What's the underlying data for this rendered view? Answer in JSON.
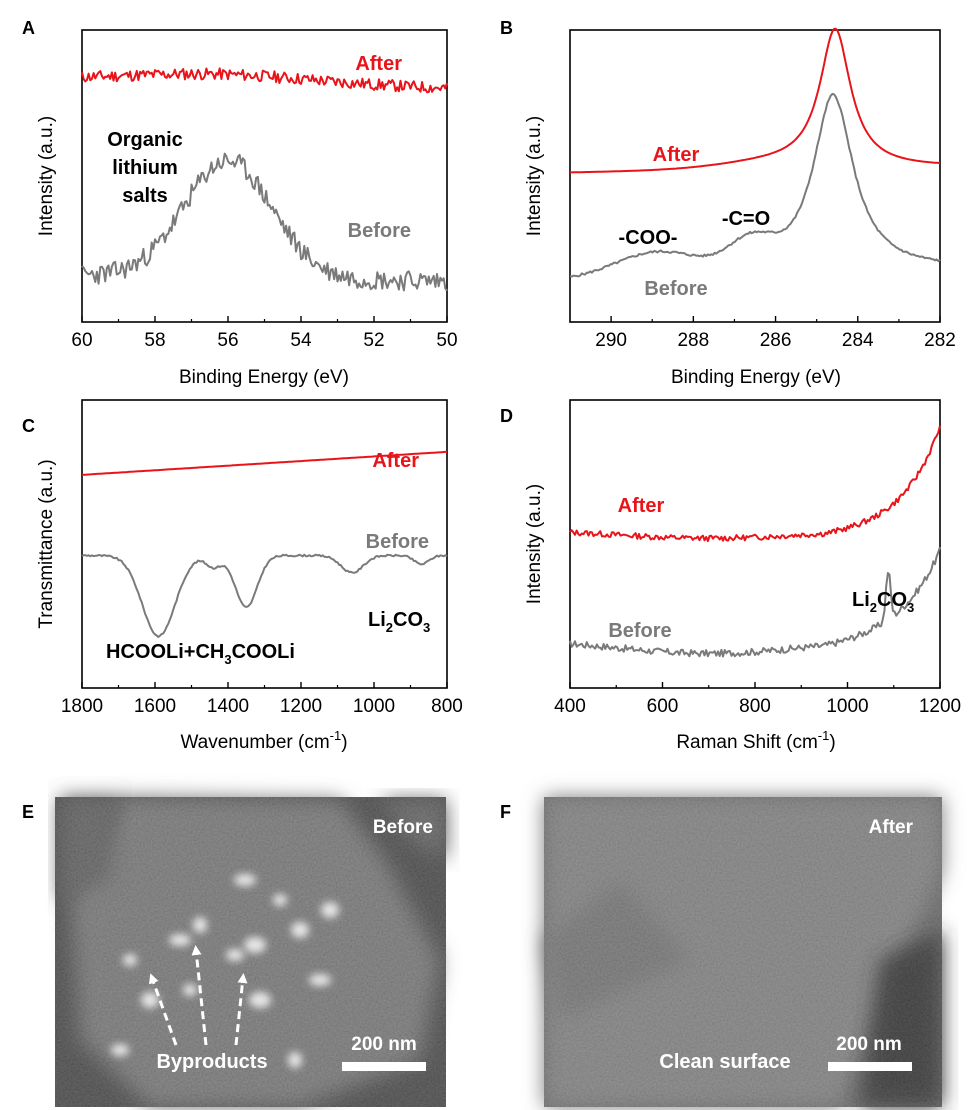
{
  "figure": {
    "panels": [
      {
        "letter": "A"
      },
      {
        "letter": "B"
      },
      {
        "letter": "C"
      },
      {
        "letter": "D"
      },
      {
        "letter": "E"
      },
      {
        "letter": "F"
      }
    ]
  },
  "colors": {
    "after": "#e8141a",
    "before": "#7a7a7a",
    "axis": "#000000"
  },
  "chart_data": [
    {
      "panel": "A",
      "type": "line",
      "xlabel": "Binding Energy (eV)",
      "ylabel": "Intensity (a.u.)",
      "xlim": [
        60,
        50
      ],
      "ylim": [
        0,
        100
      ],
      "xticks": [
        60,
        58,
        56,
        54,
        52,
        50
      ],
      "series": [
        {
          "name": "After",
          "label": "After",
          "color": "#e8141a",
          "base": 83,
          "noise": 2.0,
          "seed": 11,
          "peaks": [
            {
              "center": 56.2,
              "height": 3,
              "width": 2.5
            }
          ],
          "slope": -3
        },
        {
          "name": "Before",
          "label": "Before",
          "color": "#7a7a7a",
          "base": 16,
          "noise": 3.5,
          "seed": 23,
          "peaks": [
            {
              "center": 56.0,
              "height": 40,
              "width": 1.2
            }
          ],
          "slope": -2
        }
      ],
      "annotations": [
        {
          "lines": [
            "Organic",
            "lithium",
            "salts"
          ]
        }
      ]
    },
    {
      "panel": "B",
      "type": "line",
      "xlabel": "Binding Energy (eV)",
      "ylabel": "Intensity (a.u.)",
      "xlim": [
        291,
        282
      ],
      "ylim": [
        0,
        100
      ],
      "xticks": [
        290,
        288,
        286,
        284,
        282
      ],
      "series": [
        {
          "name": "After",
          "label": "After",
          "color": "#e8141a",
          "base": 51,
          "noise": 0,
          "seed": 3,
          "peaks": [
            {
              "center": 284.55,
              "height": 47,
              "gamma": 0.45
            },
            {
              "center": 286.0,
              "height": 2,
              "width": 1.3
            }
          ],
          "slope": 2
        },
        {
          "name": "Before",
          "label": "Before",
          "color": "#7a7a7a",
          "base": 14,
          "noise": 0.4,
          "seed": 5,
          "peaks": [
            {
              "center": 284.6,
              "height": 61,
              "gamma": 0.6
            },
            {
              "center": 288.9,
              "height": 8,
              "width": 1.0
            },
            {
              "center": 286.6,
              "height": 9,
              "width": 0.55
            }
          ],
          "slope": 4
        }
      ],
      "annotations": [
        {
          "text": "-COO-"
        },
        {
          "text": "-C=O"
        }
      ]
    },
    {
      "panel": "C",
      "type": "line",
      "xlabel": "Wavenumber (cm",
      "xlabel_sup": "-1",
      "xlabel_end": ")",
      "ylabel": "Transmittance (a.u.)",
      "xlim": [
        1800,
        800
      ],
      "ylim": [
        0,
        100
      ],
      "xticks": [
        1800,
        1600,
        1400,
        1200,
        1000,
        800
      ],
      "series": [
        {
          "name": "After",
          "label": "After",
          "color": "#e8141a",
          "base": 74,
          "noise": 0,
          "seed": 7,
          "peaks": [],
          "slope": 8
        },
        {
          "name": "Before",
          "label": "Before",
          "color": "#7a7a7a",
          "base": 46,
          "noise": 0.3,
          "seed": 9,
          "peaks": [
            {
              "center": 1590,
              "height": -28,
              "width": 45
            },
            {
              "center": 1350,
              "height": -18,
              "width": 30
            },
            {
              "center": 1440,
              "height": -4,
              "width": 20
            },
            {
              "center": 1060,
              "height": -6,
              "width": 30
            },
            {
              "center": 870,
              "height": -3,
              "width": 20
            }
          ],
          "slope": 0
        }
      ],
      "annotations": [
        {
          "text": "Li",
          "sub1": "2",
          "mid": "CO",
          "sub2": "3"
        },
        {
          "text": "HCOOLi+CH",
          "sub": "3",
          "rest": "COOLi"
        }
      ]
    },
    {
      "panel": "D",
      "type": "line",
      "xlabel": "Raman Shift (cm",
      "xlabel_sup": "-1",
      "xlabel_end": ")",
      "ylabel": "Intensity (a.u.)",
      "xlim": [
        400,
        1200
      ],
      "ylim": [
        0,
        100
      ],
      "xticks": [
        400,
        600,
        800,
        1000,
        1200
      ],
      "series": [
        {
          "name": "After",
          "label": "After",
          "color": "#e8141a",
          "base": 55,
          "noise": 1.0,
          "seed": 13,
          "peaks": [
            {
              "center": 700,
              "height": -3,
              "width": 200
            }
          ],
          "exp": {
            "start": 950,
            "amp": 36,
            "rate": 0.012
          },
          "slope": 0
        },
        {
          "name": "Before",
          "label": "Before",
          "color": "#7a7a7a",
          "base": 17,
          "noise": 1.2,
          "seed": 17,
          "peaks": [
            {
              "center": 700,
              "height": -5,
              "width": 200
            },
            {
              "center": 1088,
              "height": 17,
              "width": 5
            }
          ],
          "exp": {
            "start": 950,
            "amp": 31,
            "rate": 0.011
          },
          "slope": 0
        }
      ],
      "annotations": [
        {
          "text": "Li",
          "sub1": "2",
          "mid": "CO",
          "sub2": "3"
        }
      ]
    }
  ],
  "images": [
    {
      "panel": "E",
      "label": "Before",
      "arrows_label": "Byproducts",
      "scalebar": "200 nm"
    },
    {
      "panel": "F",
      "label": "After",
      "caption": "Clean surface",
      "scalebar": "200 nm"
    }
  ]
}
